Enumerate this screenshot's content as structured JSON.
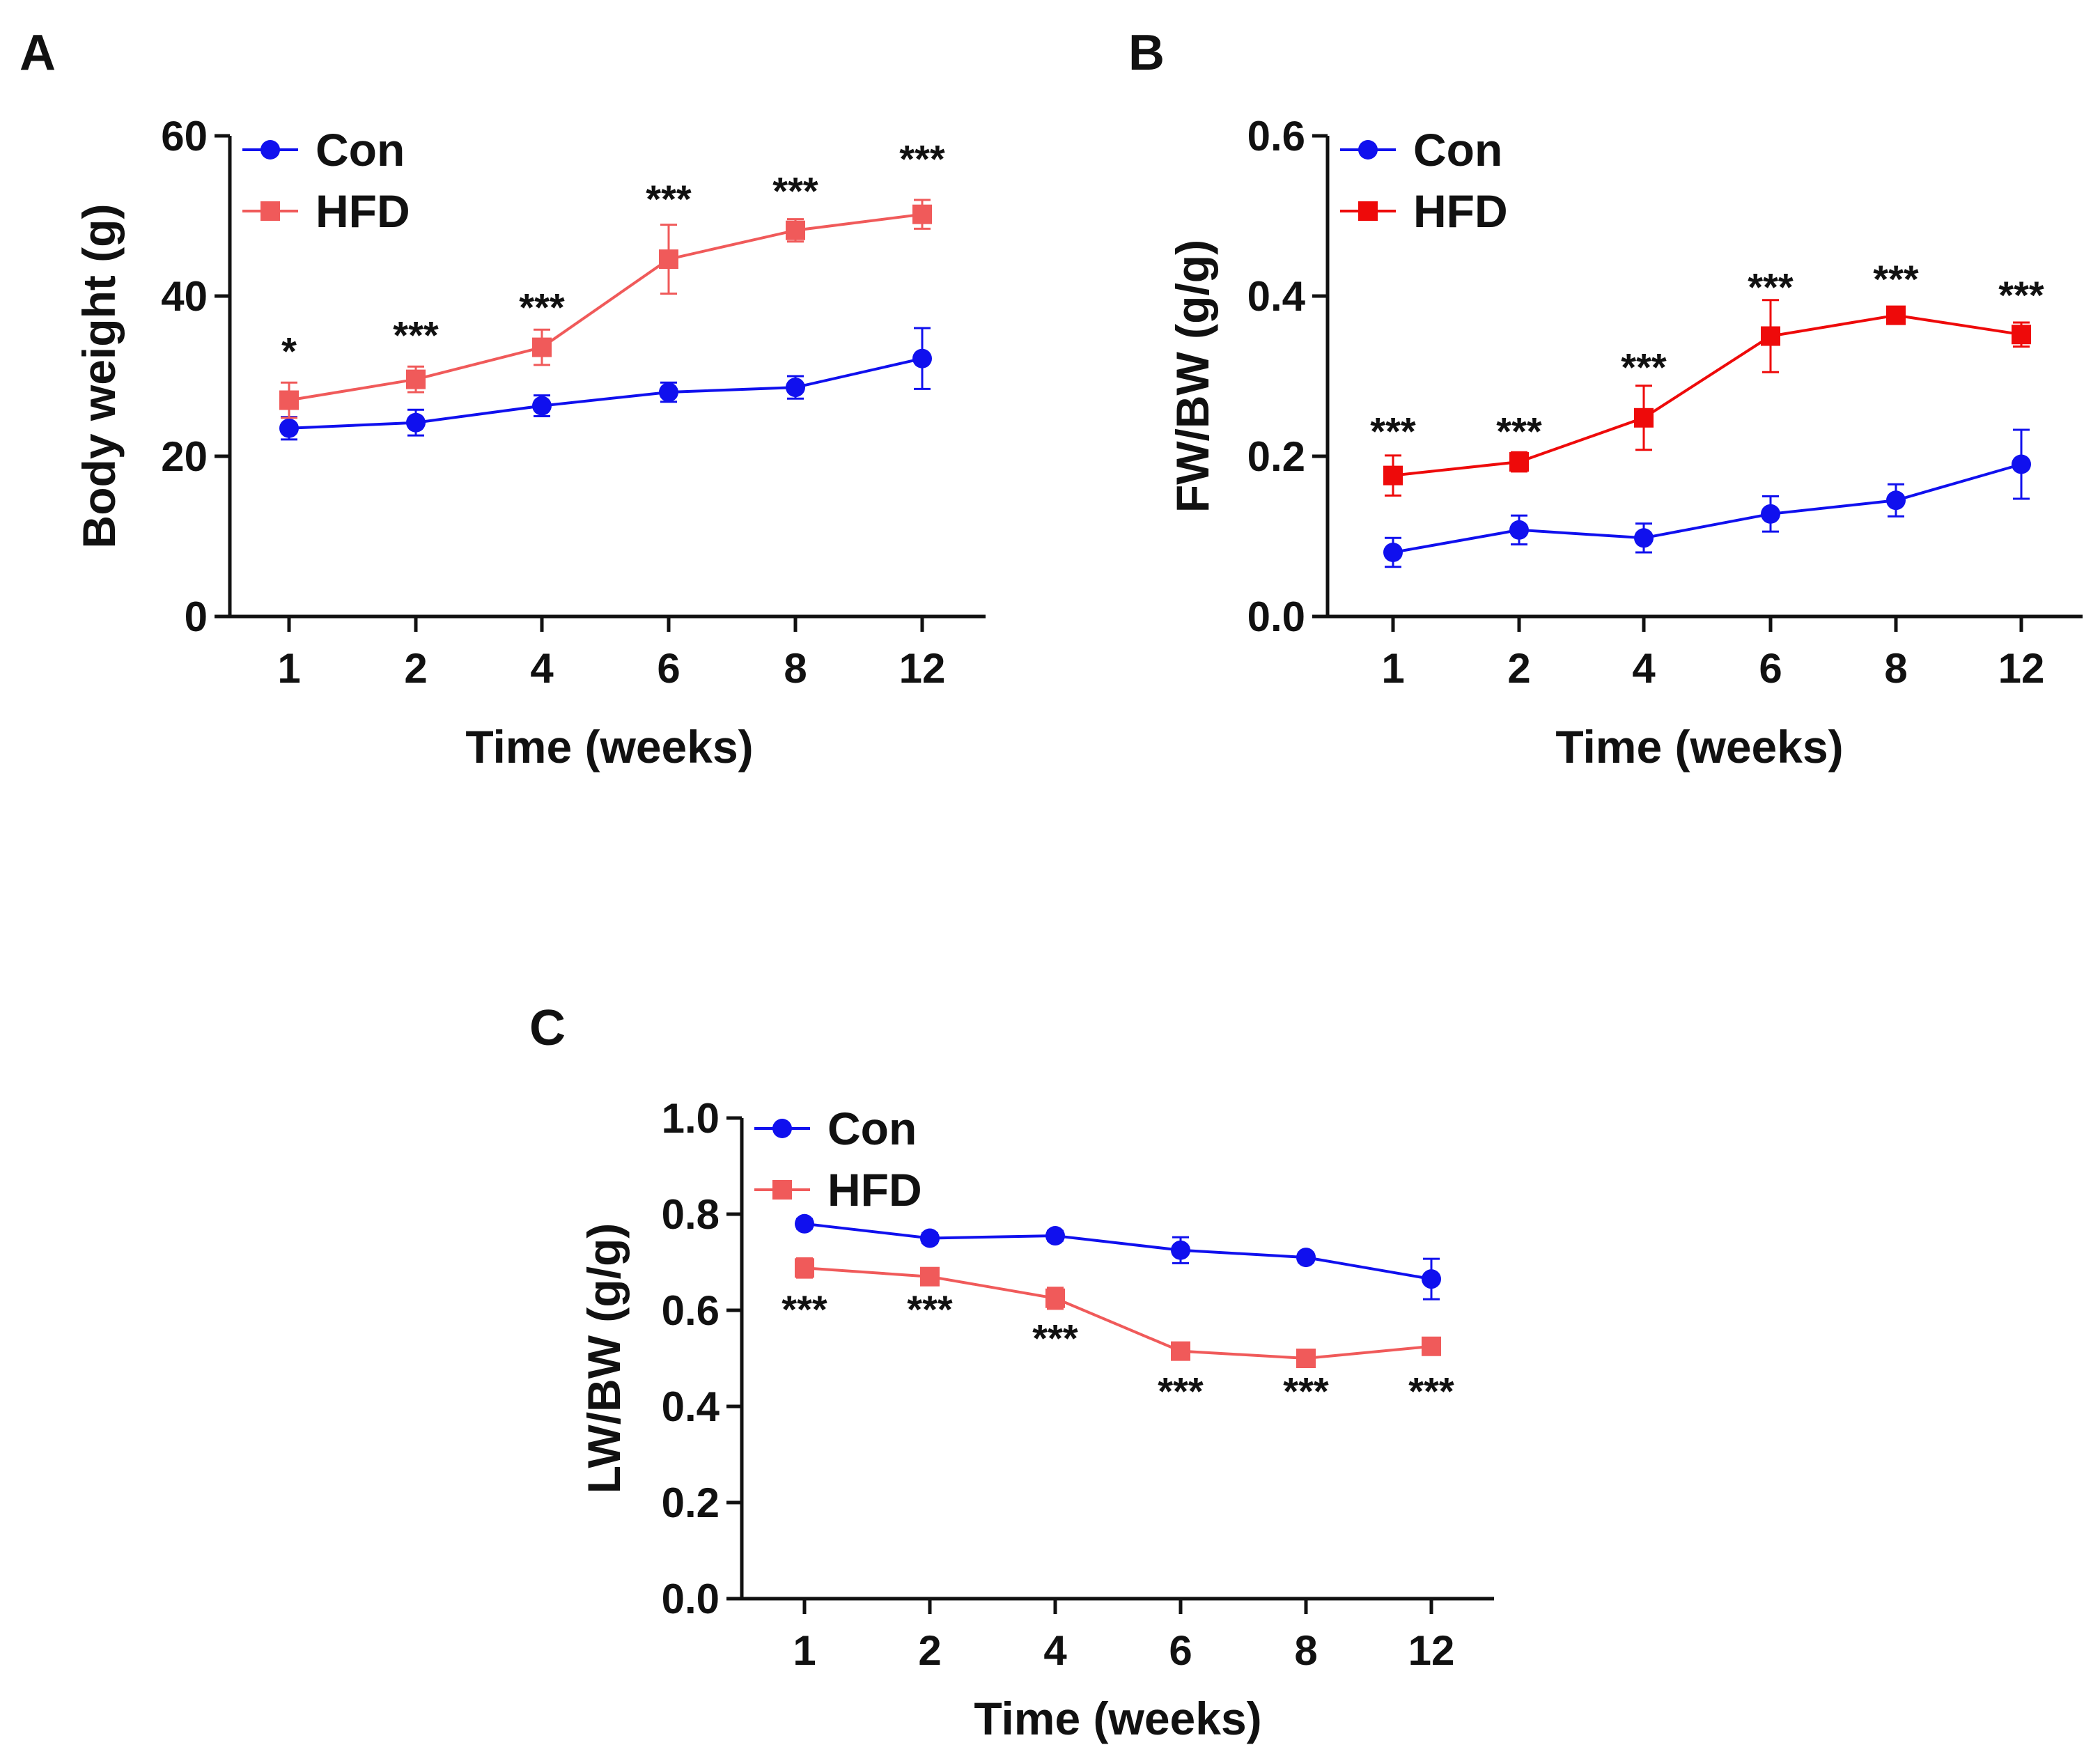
{
  "chart_data": [
    {
      "type": "line",
      "panel": "A",
      "xlabel": "Time (weeks)",
      "ylabel": "Body weight (g)",
      "categories": [
        "1",
        "2",
        "4",
        "6",
        "8",
        "12"
      ],
      "ylim": [
        0,
        60
      ],
      "yticks": [
        "0",
        "20",
        "40",
        "60"
      ],
      "grid": false,
      "legend": "top-left",
      "series": [
        {
          "name": "Con",
          "color": "#1010ee",
          "marker": "circle",
          "values": [
            23.5,
            24.2,
            26.3,
            28.0,
            28.6,
            32.2
          ],
          "errors": [
            1.4,
            1.6,
            1.3,
            1.2,
            1.4,
            3.8
          ]
        },
        {
          "name": "HFD",
          "color": "#f05a5a",
          "marker": "square",
          "values": [
            27.0,
            29.6,
            33.6,
            44.6,
            48.2,
            50.2
          ],
          "errors": [
            2.2,
            1.6,
            2.2,
            4.3,
            1.4,
            1.8
          ]
        }
      ],
      "annotations": [
        "*",
        "***",
        "***",
        "***",
        "***",
        "***"
      ],
      "annotation_values": [
        33.0,
        35.0,
        38.5,
        52.0,
        53.0,
        57.0
      ]
    },
    {
      "type": "line",
      "panel": "B",
      "xlabel": "Time (weeks)",
      "ylabel": "FW/BW (g/g)",
      "categories": [
        "1",
        "2",
        "4",
        "6",
        "8",
        "12"
      ],
      "ylim": [
        0,
        0.6
      ],
      "yticks": [
        "0.0",
        "0.2",
        "0.4",
        "0.6"
      ],
      "grid": false,
      "legend": "top-left",
      "series": [
        {
          "name": "Con",
          "color": "#1010ee",
          "marker": "circle",
          "values": [
            0.08,
            0.108,
            0.098,
            0.128,
            0.145,
            0.19
          ],
          "errors": [
            0.018,
            0.018,
            0.018,
            0.022,
            0.02,
            0.043
          ]
        },
        {
          "name": "HFD",
          "color": "#ee0a0a",
          "marker": "square",
          "values": [
            0.176,
            0.193,
            0.248,
            0.35,
            0.376,
            0.352
          ],
          "errors": [
            0.025,
            0.012,
            0.04,
            0.045,
            0.008,
            0.015
          ]
        }
      ],
      "annotations": [
        "***",
        "***",
        "***",
        "***",
        "***",
        "***"
      ],
      "annotation_values": [
        0.23,
        0.23,
        0.31,
        0.41,
        0.42,
        0.4
      ]
    },
    {
      "type": "line",
      "panel": "C",
      "xlabel": "Time (weeks)",
      "ylabel": "LW/BW (g/g)",
      "categories": [
        "1",
        "2",
        "4",
        "6",
        "8",
        "12"
      ],
      "ylim": [
        0,
        1.0
      ],
      "yticks": [
        "0.0",
        "0.2",
        "0.4",
        "0.6",
        "0.8",
        "1.0"
      ],
      "grid": false,
      "legend": "top-left",
      "series": [
        {
          "name": "Con",
          "color": "#1010ee",
          "marker": "circle",
          "values": [
            0.78,
            0.75,
            0.755,
            0.725,
            0.71,
            0.665
          ],
          "errors": [
            0.01,
            0.01,
            0.01,
            0.027,
            0.01,
            0.042
          ]
        },
        {
          "name": "HFD",
          "color": "#f05a5a",
          "marker": "square",
          "values": [
            0.688,
            0.67,
            0.625,
            0.515,
            0.5,
            0.525
          ],
          "errors": [
            0.02,
            0.012,
            0.022,
            0.01,
            0.008,
            0.01
          ]
        }
      ],
      "annotations": [
        "***",
        "***",
        "***",
        "***",
        "***",
        "***"
      ],
      "annotation_values": [
        0.6,
        0.6,
        0.54,
        0.43,
        0.43,
        0.43
      ]
    }
  ]
}
